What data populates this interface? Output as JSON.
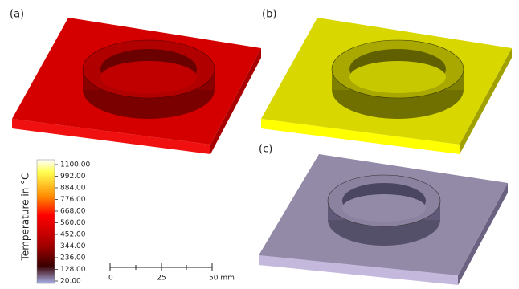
{
  "panels": {
    "a": "(a)",
    "b": "(b)",
    "c": "(c)"
  },
  "colorbar": {
    "title": "Temperature in °C",
    "ticks": [
      "1100.00",
      "992.00",
      "884.00",
      "776.00",
      "668.00",
      "560.00",
      "452.00",
      "344.00",
      "236.00",
      "128.00",
      "20.00"
    ]
  },
  "scalebar": {
    "labels": [
      "0",
      "25",
      "50 mm"
    ]
  }
}
